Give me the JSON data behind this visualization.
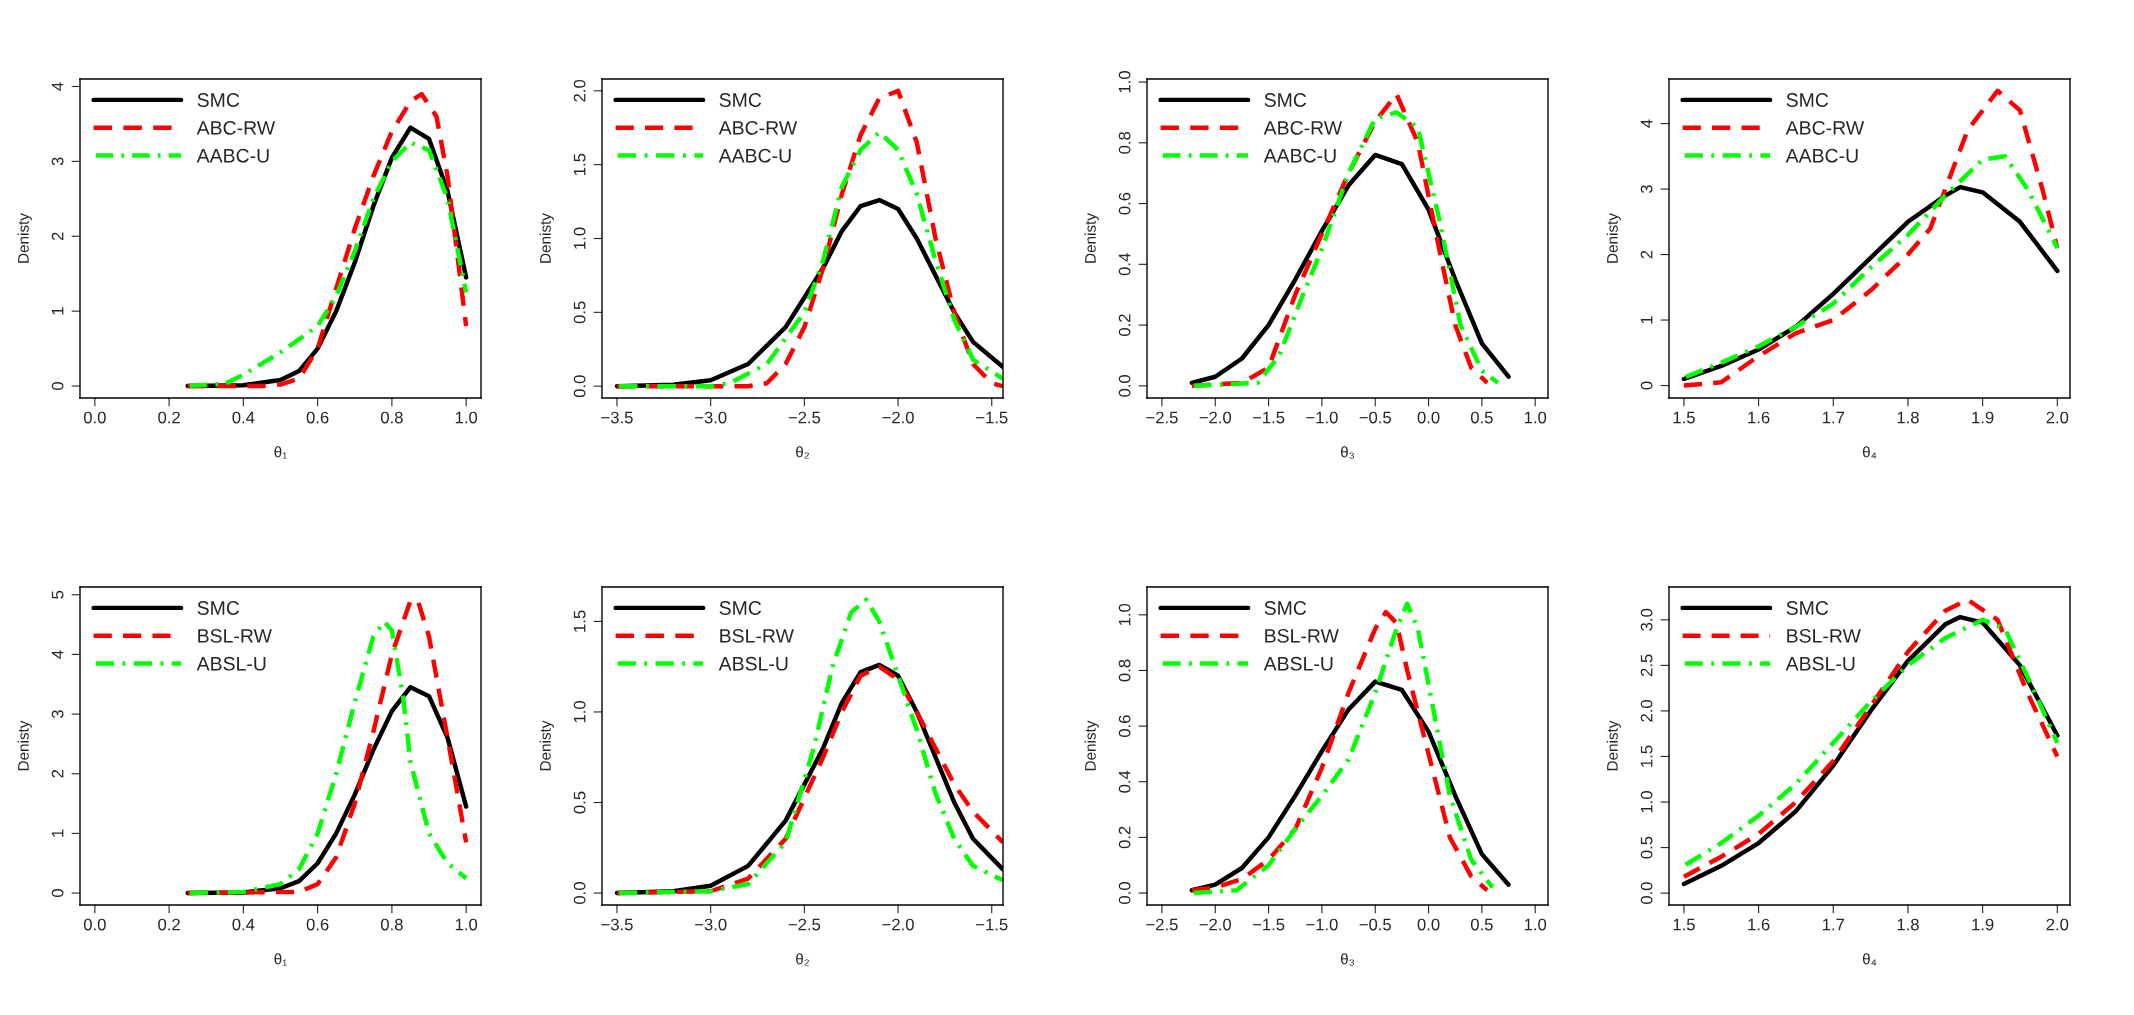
{
  "chart_data": [
    {
      "type": "line",
      "xlabel": "θ₁",
      "ylabel": "Denisty",
      "legend": "top left",
      "grid": false,
      "xlim": [
        -0.04,
        1.04
      ],
      "ylim": [
        -0.16,
        4.1
      ],
      "xticks": [
        {
          "value": 0,
          "label": "0.0"
        },
        0.2,
        0.4,
        0.6,
        0.8,
        {
          "value": 1,
          "label": "1.0"
        }
      ],
      "yticks": [
        0,
        1,
        2,
        3,
        4
      ],
      "series": [
        {
          "name": "SMC",
          "color": "#000000",
          "line_style": "solid",
          "x": [
            0.25,
            0.4,
            0.5,
            0.55,
            0.6,
            0.65,
            0.7,
            0.75,
            0.8,
            0.85,
            0.9,
            0.95,
            1.0
          ],
          "values": [
            0,
            0.01,
            0.08,
            0.2,
            0.5,
            1.0,
            1.65,
            2.4,
            3.05,
            3.45,
            3.3,
            2.6,
            1.45
          ]
        },
        {
          "name": "ABC-RW",
          "color": "#ff0000",
          "line_style": "dashed",
          "x": [
            0.25,
            0.45,
            0.5,
            0.55,
            0.6,
            0.65,
            0.7,
            0.75,
            0.8,
            0.85,
            0.88,
            0.92,
            0.95,
            0.98,
            1.0
          ],
          "values": [
            0,
            0,
            0.02,
            0.1,
            0.5,
            1.3,
            2.1,
            2.8,
            3.4,
            3.8,
            3.9,
            3.6,
            2.8,
            1.6,
            0.8
          ]
        },
        {
          "name": "AABC-U",
          "color": "#00ff00",
          "line_style": "dashdot",
          "x": [
            0.25,
            0.35,
            0.4,
            0.5,
            0.6,
            0.65,
            0.7,
            0.75,
            0.8,
            0.85,
            0.9,
            0.95,
            1.0
          ],
          "values": [
            0,
            0.03,
            0.15,
            0.45,
            0.8,
            1.2,
            1.8,
            2.5,
            3.0,
            3.25,
            3.15,
            2.5,
            1.25
          ]
        }
      ]
    },
    {
      "type": "line",
      "xlabel": "θ₂",
      "ylabel": "Denisty",
      "legend": "top left",
      "grid": false,
      "xlim": [
        -3.58,
        -1.44
      ],
      "ylim": [
        -0.08,
        2.08
      ],
      "xticks": [
        {
          "value": -3.5,
          "label": "−3.5"
        },
        {
          "value": -3.0,
          "label": "−3.0"
        },
        {
          "value": -2.5,
          "label": "−2.5"
        },
        {
          "value": -2.0,
          "label": "−2.0"
        },
        {
          "value": -1.5,
          "label": "−1.5"
        }
      ],
      "yticks": [
        {
          "value": 0,
          "label": "0.0"
        },
        0.5,
        {
          "value": 1,
          "label": "1.0"
        },
        1.5,
        {
          "value": 2,
          "label": "2.0"
        }
      ],
      "series": [
        {
          "name": "SMC",
          "color": "#000000",
          "line_style": "solid",
          "x": [
            -3.5,
            -3.2,
            -3.0,
            -2.8,
            -2.6,
            -2.4,
            -2.3,
            -2.2,
            -2.1,
            -2.0,
            -1.9,
            -1.8,
            -1.7,
            -1.6,
            -1.44
          ],
          "values": [
            0,
            0.01,
            0.04,
            0.15,
            0.4,
            0.8,
            1.05,
            1.22,
            1.26,
            1.2,
            1.0,
            0.75,
            0.5,
            0.3,
            0.13
          ]
        },
        {
          "name": "ABC-RW",
          "color": "#ff0000",
          "line_style": "dashed",
          "x": [
            -3.5,
            -2.8,
            -2.7,
            -2.6,
            -2.5,
            -2.4,
            -2.3,
            -2.2,
            -2.1,
            -2.0,
            -1.9,
            -1.8,
            -1.7,
            -1.6,
            -1.5,
            -1.44
          ],
          "values": [
            0,
            0,
            0.02,
            0.15,
            0.4,
            0.8,
            1.3,
            1.7,
            1.95,
            2.0,
            1.65,
            1.0,
            0.5,
            0.15,
            0.02,
            0
          ]
        },
        {
          "name": "AABC-U",
          "color": "#00ff00",
          "line_style": "dashdot",
          "x": [
            -3.5,
            -3.0,
            -2.9,
            -2.7,
            -2.5,
            -2.4,
            -2.3,
            -2.2,
            -2.1,
            -2.0,
            -1.9,
            -1.8,
            -1.7,
            -1.6,
            -1.44
          ],
          "values": [
            0,
            0,
            0.02,
            0.15,
            0.5,
            0.85,
            1.35,
            1.6,
            1.72,
            1.6,
            1.3,
            0.85,
            0.45,
            0.18,
            0.05
          ]
        }
      ]
    },
    {
      "type": "line",
      "xlabel": "θ₃",
      "ylabel": "Denisty",
      "legend": "top left",
      "grid": false,
      "xlim": [
        -2.64,
        1.12
      ],
      "ylim": [
        -0.04,
        1.01
      ],
      "xticks": [
        {
          "value": -2.5,
          "label": "−2.5"
        },
        {
          "value": -2.0,
          "label": "−2.0"
        },
        {
          "value": -1.5,
          "label": "−1.5"
        },
        {
          "value": -1.0,
          "label": "−1.0"
        },
        {
          "value": -0.5,
          "label": "−0.5"
        },
        {
          "value": 0,
          "label": "0.0"
        },
        0.5,
        {
          "value": 1,
          "label": "1.0"
        }
      ],
      "yticks": [
        {
          "value": 0,
          "label": "0.0"
        },
        0.2,
        0.4,
        0.6,
        0.8,
        {
          "value": 1,
          "label": "1.0"
        }
      ],
      "series": [
        {
          "name": "SMC",
          "color": "#000000",
          "line_style": "solid",
          "x": [
            -2.22,
            -2.0,
            -1.75,
            -1.5,
            -1.25,
            -1.0,
            -0.75,
            -0.5,
            -0.25,
            0.0,
            0.25,
            0.5,
            0.75
          ],
          "values": [
            0.01,
            0.03,
            0.09,
            0.2,
            0.35,
            0.51,
            0.66,
            0.76,
            0.73,
            0.58,
            0.35,
            0.14,
            0.03
          ]
        },
        {
          "name": "ABC-RW",
          "color": "#ff0000",
          "line_style": "dashed",
          "x": [
            -2.22,
            -1.75,
            -1.5,
            -1.25,
            -1.0,
            -0.75,
            -0.5,
            -0.3,
            -0.1,
            0.1,
            0.25,
            0.4,
            0.55
          ],
          "values": [
            0,
            0.01,
            0.06,
            0.3,
            0.5,
            0.7,
            0.87,
            0.96,
            0.8,
            0.45,
            0.2,
            0.06,
            0.01
          ]
        },
        {
          "name": "AABC-U",
          "color": "#00ff00",
          "line_style": "dashdot",
          "x": [
            -2.22,
            -1.6,
            -1.4,
            -1.2,
            -1.0,
            -0.75,
            -0.5,
            -0.3,
            -0.1,
            0.1,
            0.3,
            0.5,
            0.65
          ],
          "values": [
            0,
            0.01,
            0.1,
            0.28,
            0.45,
            0.7,
            0.88,
            0.9,
            0.85,
            0.55,
            0.2,
            0.05,
            0.01
          ]
        }
      ]
    },
    {
      "type": "line",
      "xlabel": "θ₄",
      "ylabel": "Denisty",
      "legend": "top left",
      "grid": false,
      "xlim": [
        1.48,
        2.017
      ],
      "ylim": [
        -0.19,
        4.68
      ],
      "xticks": [
        1.5,
        1.6,
        1.7,
        1.8,
        1.9,
        {
          "value": 2,
          "label": "2.0"
        }
      ],
      "yticks": [
        0,
        1,
        2,
        3,
        4
      ],
      "series": [
        {
          "name": "SMC",
          "color": "#000000",
          "line_style": "solid",
          "x": [
            1.5,
            1.55,
            1.6,
            1.65,
            1.7,
            1.75,
            1.8,
            1.85,
            1.87,
            1.9,
            1.95,
            2.0
          ],
          "values": [
            0.1,
            0.3,
            0.55,
            0.9,
            1.4,
            1.95,
            2.5,
            2.9,
            3.03,
            2.95,
            2.5,
            1.75
          ]
        },
        {
          "name": "ABC-RW",
          "color": "#ff0000",
          "line_style": "dashed",
          "x": [
            1.5,
            1.55,
            1.6,
            1.65,
            1.7,
            1.75,
            1.8,
            1.83,
            1.85,
            1.88,
            1.92,
            1.95,
            1.98,
            2.0
          ],
          "values": [
            0,
            0.05,
            0.45,
            0.8,
            1.0,
            1.45,
            2.0,
            2.4,
            3.0,
            3.9,
            4.5,
            4.2,
            3.0,
            2.1
          ]
        },
        {
          "name": "AABC-U",
          "color": "#00ff00",
          "line_style": "dashdot",
          "x": [
            1.5,
            1.55,
            1.6,
            1.65,
            1.7,
            1.75,
            1.8,
            1.85,
            1.9,
            1.93,
            1.96,
            2.0
          ],
          "values": [
            0.12,
            0.35,
            0.6,
            0.9,
            1.25,
            1.8,
            2.3,
            2.9,
            3.45,
            3.5,
            3.0,
            2.1
          ]
        }
      ]
    },
    {
      "type": "line",
      "xlabel": "θ₁",
      "ylabel": "Denisty",
      "legend": "top left",
      "grid": false,
      "xlim": [
        -0.04,
        1.04
      ],
      "ylim": [
        -0.2,
        5.13
      ],
      "xticks": [
        {
          "value": 0,
          "label": "0.0"
        },
        0.2,
        0.4,
        0.6,
        0.8,
        {
          "value": 1,
          "label": "1.0"
        }
      ],
      "yticks": [
        0,
        1,
        2,
        3,
        4,
        5
      ],
      "series": [
        {
          "name": "SMC",
          "color": "#000000",
          "line_style": "solid",
          "x": [
            0.25,
            0.4,
            0.5,
            0.55,
            0.6,
            0.65,
            0.7,
            0.75,
            0.8,
            0.85,
            0.9,
            0.95,
            1.0
          ],
          "values": [
            0,
            0.01,
            0.08,
            0.2,
            0.5,
            1.0,
            1.65,
            2.4,
            3.05,
            3.45,
            3.3,
            2.6,
            1.45
          ]
        },
        {
          "name": "BSL-RW",
          "color": "#ff0000",
          "line_style": "dashed",
          "x": [
            0.25,
            0.55,
            0.6,
            0.65,
            0.7,
            0.75,
            0.8,
            0.85,
            0.87,
            0.9,
            0.95,
            1.0
          ],
          "values": [
            0,
            0.02,
            0.15,
            0.6,
            1.5,
            2.7,
            4.0,
            4.9,
            4.9,
            4.3,
            2.6,
            0.85
          ]
        },
        {
          "name": "ABSL-U",
          "color": "#00ff00",
          "line_style": "dashdot",
          "x": [
            0.25,
            0.4,
            0.5,
            0.55,
            0.6,
            0.65,
            0.7,
            0.75,
            0.78,
            0.8,
            0.83,
            0.85,
            0.9,
            0.95,
            1.0
          ],
          "values": [
            0,
            0.02,
            0.15,
            0.4,
            1.0,
            2.0,
            3.2,
            4.3,
            4.55,
            4.4,
            3.3,
            2.2,
            1.0,
            0.5,
            0.25
          ]
        }
      ]
    },
    {
      "type": "line",
      "xlabel": "θ₂",
      "ylabel": "Denisty",
      "legend": "top left",
      "grid": false,
      "xlim": [
        -3.58,
        -1.44
      ],
      "ylim": [
        -0.066,
        1.69
      ],
      "xticks": [
        {
          "value": -3.5,
          "label": "−3.5"
        },
        {
          "value": -3.0,
          "label": "−3.0"
        },
        {
          "value": -2.5,
          "label": "−2.5"
        },
        {
          "value": -2.0,
          "label": "−2.0"
        },
        {
          "value": -1.5,
          "label": "−1.5"
        }
      ],
      "yticks": [
        {
          "value": 0,
          "label": "0.0"
        },
        0.5,
        {
          "value": 1,
          "label": "1.0"
        },
        1.5
      ],
      "series": [
        {
          "name": "SMC",
          "color": "#000000",
          "line_style": "solid",
          "x": [
            -3.5,
            -3.2,
            -3.0,
            -2.8,
            -2.6,
            -2.4,
            -2.3,
            -2.2,
            -2.1,
            -2.0,
            -1.9,
            -1.8,
            -1.7,
            -1.6,
            -1.44
          ],
          "values": [
            0,
            0.01,
            0.04,
            0.15,
            0.4,
            0.8,
            1.05,
            1.22,
            1.26,
            1.2,
            1.0,
            0.75,
            0.5,
            0.3,
            0.13
          ]
        },
        {
          "name": "BSL-RW",
          "color": "#ff0000",
          "line_style": "dashed",
          "x": [
            -3.5,
            -3.0,
            -2.8,
            -2.6,
            -2.4,
            -2.3,
            -2.2,
            -2.1,
            -2.0,
            -1.9,
            -1.8,
            -1.7,
            -1.6,
            -1.44
          ],
          "values": [
            0,
            0.01,
            0.08,
            0.3,
            0.75,
            1.0,
            1.2,
            1.25,
            1.18,
            1.0,
            0.8,
            0.6,
            0.45,
            0.28
          ]
        },
        {
          "name": "ABSL-U",
          "color": "#00ff00",
          "line_style": "dashdot",
          "x": [
            -3.5,
            -3.0,
            -2.8,
            -2.6,
            -2.45,
            -2.35,
            -2.25,
            -2.17,
            -2.1,
            -2.0,
            -1.9,
            -1.8,
            -1.7,
            -1.6,
            -1.44
          ],
          "values": [
            0,
            0.01,
            0.05,
            0.28,
            0.8,
            1.25,
            1.55,
            1.62,
            1.5,
            1.2,
            0.9,
            0.55,
            0.3,
            0.15,
            0.07
          ]
        }
      ]
    },
    {
      "type": "line",
      "xlabel": "θ₃",
      "ylabel": "Denisty",
      "legend": "top left",
      "grid": false,
      "xlim": [
        -2.64,
        1.12
      ],
      "ylim": [
        -0.043,
        1.1
      ],
      "xticks": [
        {
          "value": -2.5,
          "label": "−2.5"
        },
        {
          "value": -2.0,
          "label": "−2.0"
        },
        {
          "value": -1.5,
          "label": "−1.5"
        },
        {
          "value": -1.0,
          "label": "−1.0"
        },
        {
          "value": -0.5,
          "label": "−0.5"
        },
        {
          "value": 0,
          "label": "0.0"
        },
        0.5,
        {
          "value": 1,
          "label": "1.0"
        }
      ],
      "yticks": [
        {
          "value": 0,
          "label": "0.0"
        },
        0.2,
        0.4,
        0.6,
        0.8,
        {
          "value": 1,
          "label": "1.0"
        }
      ],
      "series": [
        {
          "name": "SMC",
          "color": "#000000",
          "line_style": "solid",
          "x": [
            -2.22,
            -2.0,
            -1.75,
            -1.5,
            -1.25,
            -1.0,
            -0.75,
            -0.5,
            -0.25,
            0.0,
            0.25,
            0.5,
            0.75
          ],
          "values": [
            0.01,
            0.03,
            0.09,
            0.2,
            0.35,
            0.51,
            0.66,
            0.76,
            0.73,
            0.58,
            0.35,
            0.14,
            0.03
          ]
        },
        {
          "name": "BSL-RW",
          "color": "#ff0000",
          "line_style": "dashed",
          "x": [
            -2.22,
            -2.0,
            -1.75,
            -1.5,
            -1.25,
            -1.0,
            -0.75,
            -0.5,
            -0.4,
            -0.3,
            -0.2,
            0.0,
            0.2,
            0.4,
            0.55
          ],
          "values": [
            0.01,
            0.02,
            0.05,
            0.12,
            0.23,
            0.45,
            0.72,
            0.95,
            1.01,
            0.97,
            0.8,
            0.5,
            0.2,
            0.06,
            0.01
          ]
        },
        {
          "name": "ABSL-U",
          "color": "#00ff00",
          "line_style": "dashdot",
          "x": [
            -2.22,
            -1.8,
            -1.5,
            -1.25,
            -1.0,
            -0.75,
            -0.5,
            -0.3,
            -0.2,
            -0.1,
            0.0,
            0.2,
            0.4,
            0.6
          ],
          "values": [
            0,
            0.01,
            0.1,
            0.23,
            0.35,
            0.48,
            0.72,
            0.95,
            1.04,
            0.95,
            0.75,
            0.35,
            0.12,
            0.02
          ]
        }
      ]
    },
    {
      "type": "line",
      "xlabel": "θ₄",
      "ylabel": "Denisty",
      "legend": "top left",
      "grid": false,
      "xlim": [
        1.48,
        2.017
      ],
      "ylim": [
        -0.13,
        3.36
      ],
      "xticks": [
        1.5,
        1.6,
        1.7,
        1.8,
        1.9,
        {
          "value": 2,
          "label": "2.0"
        }
      ],
      "yticks": [
        {
          "value": 0,
          "label": "0.0"
        },
        0.5,
        {
          "value": 1,
          "label": "1.0"
        },
        1.5,
        {
          "value": 2,
          "label": "2.0"
        },
        2.5,
        {
          "value": 3,
          "label": "3.0"
        }
      ],
      "series": [
        {
          "name": "SMC",
          "color": "#000000",
          "line_style": "solid",
          "x": [
            1.5,
            1.55,
            1.6,
            1.65,
            1.7,
            1.75,
            1.8,
            1.85,
            1.87,
            1.9,
            1.95,
            2.0
          ],
          "values": [
            0.1,
            0.3,
            0.55,
            0.9,
            1.4,
            2.0,
            2.55,
            2.95,
            3.03,
            2.97,
            2.5,
            1.73
          ]
        },
        {
          "name": "BSL-RW",
          "color": "#ff0000",
          "line_style": "dashed",
          "x": [
            1.5,
            1.55,
            1.6,
            1.65,
            1.7,
            1.75,
            1.8,
            1.85,
            1.88,
            1.92,
            1.96,
            2.0
          ],
          "values": [
            0.18,
            0.4,
            0.65,
            1.0,
            1.45,
            2.05,
            2.65,
            3.1,
            3.22,
            3.0,
            2.2,
            1.5
          ]
        },
        {
          "name": "ABSL-U",
          "color": "#00ff00",
          "line_style": "dashdot",
          "x": [
            1.5,
            1.55,
            1.6,
            1.65,
            1.7,
            1.75,
            1.8,
            1.85,
            1.9,
            1.93,
            1.97,
            2.0
          ],
          "values": [
            0.3,
            0.55,
            0.85,
            1.2,
            1.65,
            2.1,
            2.5,
            2.8,
            3.0,
            2.9,
            2.2,
            1.65
          ]
        }
      ]
    }
  ]
}
